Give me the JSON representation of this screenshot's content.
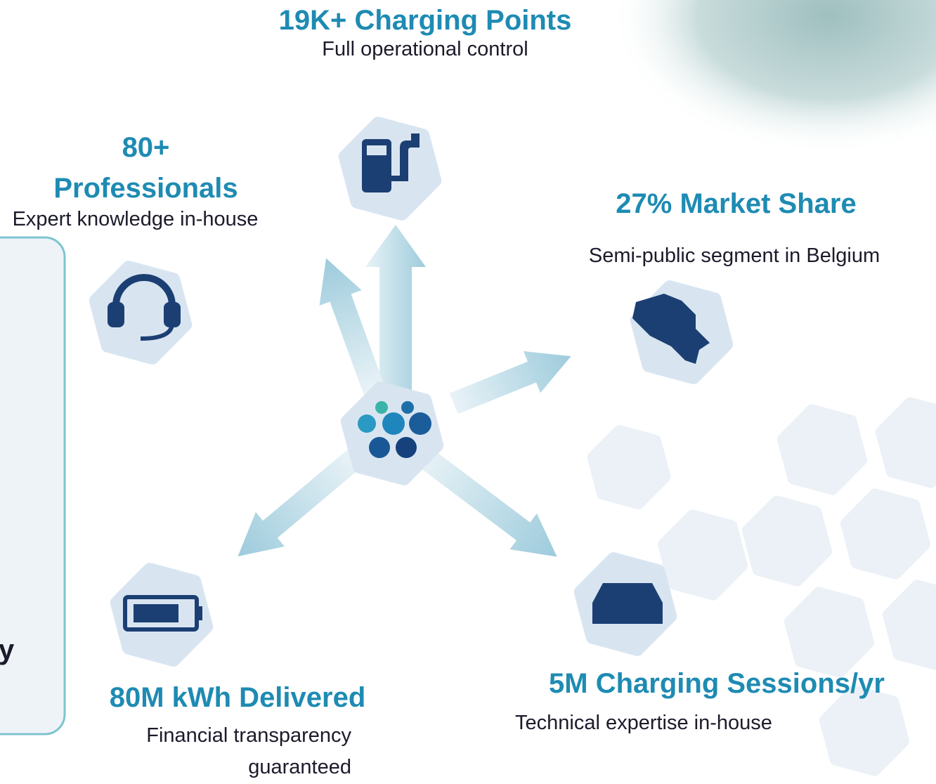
{
  "nodes": [
    {
      "title": "19K+ Charging Points",
      "subtitle": "Full operational control"
    },
    {
      "title": "80+ Professionals",
      "subtitle": "Expert knowledge in-house"
    },
    {
      "title": "27% Market Share",
      "subtitle": "Semi-public segment in Belgium"
    },
    {
      "title": "80M kWh Delivered",
      "subtitle": "Financial transparency guaranteed"
    },
    {
      "title": "5M Charging Sessions/yr",
      "subtitle": "Technical expertise in-house"
    }
  ],
  "side_panel": {
    "text": "y"
  }
}
